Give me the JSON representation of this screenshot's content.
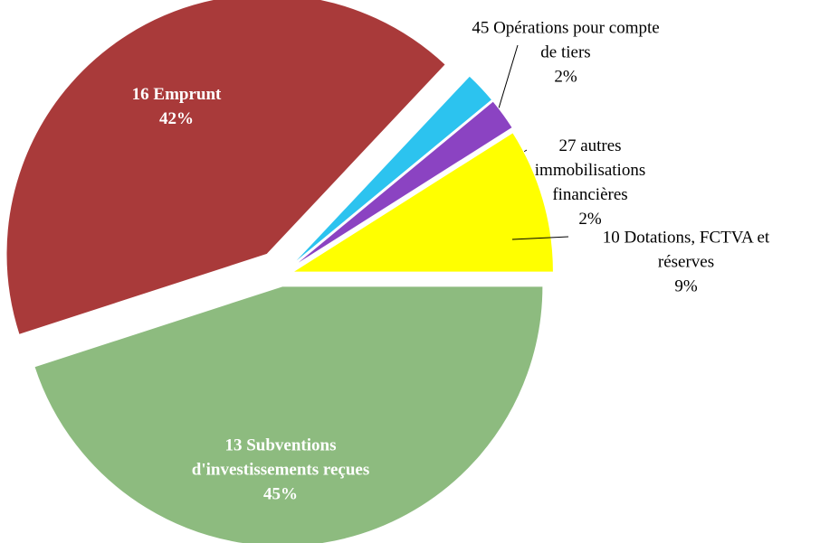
{
  "chart_data": {
    "type": "pie",
    "categories": [
      "13 Subventions d'investissements reçues",
      "16 Emprunt",
      "45 Opérations pour compte de tiers",
      "27 autres immobilisations financières",
      "10 Dotations, FCTVA et réserves"
    ],
    "values": [
      45,
      42,
      2,
      2,
      9
    ],
    "value_labels": [
      "45%",
      "42%",
      "2%",
      "2%",
      "9%"
    ],
    "colors": [
      "#8dbb7f",
      "#a93a3a",
      "#2cc3ef",
      "#8b43c2",
      "#ffff00"
    ]
  }
}
